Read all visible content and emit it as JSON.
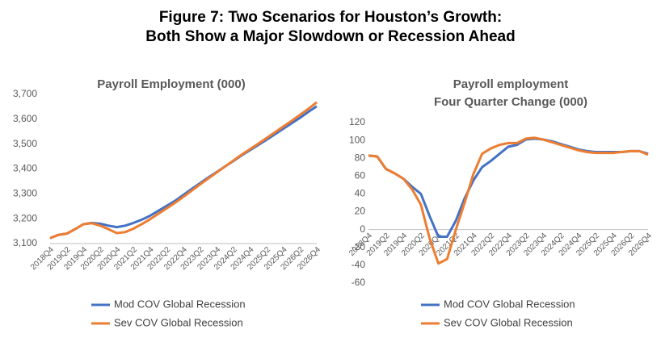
{
  "title": [
    "Figure 7: Two Scenarios for Houston’s Growth:",
    "Both Show a Major Slowdown or Recession Ahead"
  ],
  "chart_data": [
    {
      "type": "line",
      "title": "Payroll Employment (000)",
      "categories": [
        "2018Q4",
        null,
        "2019Q2",
        null,
        "2019Q4",
        null,
        "2020Q2",
        null,
        "2020Q4",
        null,
        "2021Q2",
        null,
        "2021Q4",
        null,
        "2022Q2",
        null,
        "2022Q4",
        null,
        "2023Q2",
        null,
        "2023Q4",
        null,
        "2024Q2",
        null,
        "2024Q4",
        null,
        "2025Q2",
        null,
        "2025Q4",
        null,
        "2026Q2",
        null,
        "2026Q4"
      ],
      "series": [
        {
          "name": "Mod COV Global Recession",
          "color": "#4472c4",
          "values": [
            3122,
            3135,
            3140,
            3158,
            3178,
            3183,
            3180,
            3172,
            3166,
            3172,
            3183,
            3196,
            3212,
            3232,
            3252,
            3272,
            3296,
            3320,
            3343,
            3366,
            3388,
            3410,
            3432,
            3455,
            3476,
            3497,
            3518,
            3540,
            3562,
            3584,
            3606,
            3630,
            3652
          ]
        },
        {
          "name": "Sev COV Global Recession",
          "color": "#ed7d31",
          "values": [
            3122,
            3135,
            3140,
            3158,
            3178,
            3182,
            3172,
            3158,
            3142,
            3146,
            3160,
            3178,
            3198,
            3220,
            3242,
            3264,
            3288,
            3313,
            3338,
            3362,
            3386,
            3410,
            3434,
            3458,
            3480,
            3502,
            3525,
            3548,
            3571,
            3594,
            3618,
            3642,
            3668
          ]
        }
      ],
      "ylim": [
        3100,
        3700
      ],
      "yticks": [
        {
          "value": 3100,
          "label": "3,100"
        },
        {
          "value": 3200,
          "label": "3,200"
        },
        {
          "value": 3300,
          "label": "3,300"
        },
        {
          "value": 3400,
          "label": "3,400"
        },
        {
          "value": 3500,
          "label": "3,500"
        },
        {
          "value": 3600,
          "label": "3,600"
        },
        {
          "value": 3700,
          "label": "3,700"
        }
      ],
      "grid": false,
      "legend": "bottom"
    },
    {
      "type": "line",
      "title": [
        "Payroll employment",
        "Four Quarter Change (000)"
      ],
      "categories": [
        "2018Q4",
        null,
        "2019Q2",
        null,
        "2019Q4",
        null,
        "2020Q2",
        null,
        "2020Q4",
        null,
        "2021Q2",
        null,
        "2021Q4",
        null,
        "2022Q2",
        null,
        "2022Q4",
        null,
        "2023Q2",
        null,
        "2023Q4",
        null,
        "2024Q2",
        null,
        "2024Q4",
        null,
        "2025Q2",
        null,
        "2025Q4",
        null,
        "2026Q2",
        null,
        "2026Q4"
      ],
      "series": [
        {
          "name": "Mod COV Global Recession",
          "color": "#4472c4",
          "values": [
            83,
            82,
            68,
            63,
            57,
            48,
            40,
            15,
            -8,
            -8,
            10,
            35,
            55,
            70,
            77,
            85,
            93,
            95,
            101,
            102,
            101,
            99,
            96,
            93,
            90,
            88,
            87,
            87,
            87,
            87,
            88,
            88,
            85
          ]
        },
        {
          "name": "Sev COV Global Recession",
          "color": "#ed7d31",
          "values": [
            83,
            82,
            68,
            63,
            57,
            45,
            28,
            -10,
            -38,
            -33,
            0,
            30,
            62,
            85,
            91,
            95,
            97,
            97,
            102,
            103,
            101,
            98,
            95,
            92,
            89,
            87,
            86,
            86,
            86,
            87,
            88,
            88,
            84
          ]
        }
      ],
      "ylim": [
        -60,
        120
      ],
      "yticks": [
        -60,
        -40,
        -20,
        0,
        20,
        40,
        60,
        80,
        100,
        120
      ],
      "grid": false,
      "legend": "bottom"
    }
  ]
}
